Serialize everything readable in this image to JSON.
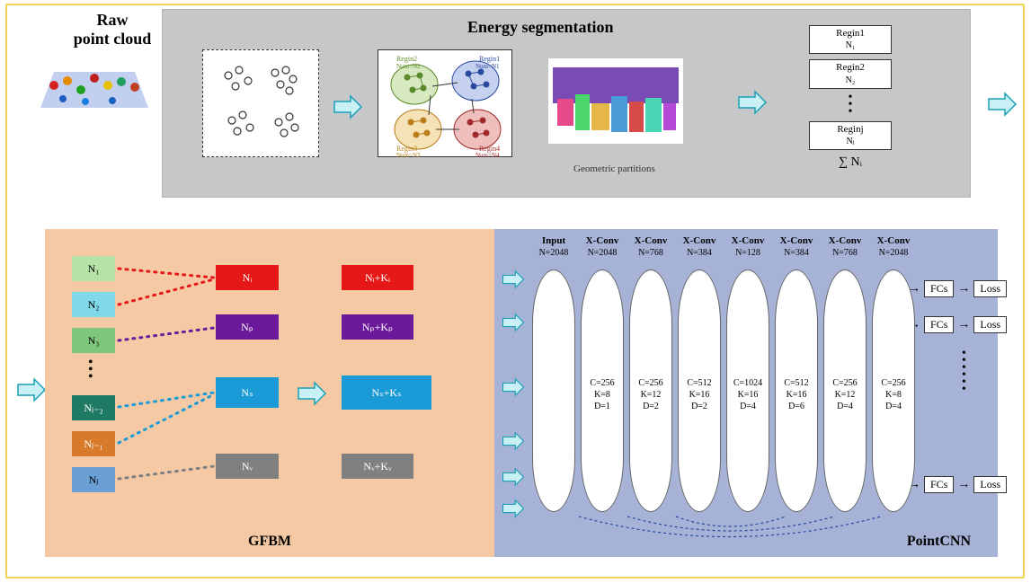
{
  "border_color": "#f2d258",
  "top": {
    "raw_title_l1": "Raw",
    "raw_title_l2": "point cloud",
    "energy_title": "Energy    segmentation",
    "geom_label": "Geometric partitions",
    "clusters": [
      {
        "label": "Regin1",
        "sub": "Num=N1",
        "color": "#2a4aa0"
      },
      {
        "label": "Regin2",
        "sub": "Num=N2",
        "color": "#5b8a2a"
      },
      {
        "label": "Regin3",
        "sub": "Num=N3",
        "color": "#b87d1a"
      },
      {
        "label": "Regin4",
        "sub": "Num=N4",
        "color": "#a02a2a"
      }
    ],
    "regions": [
      {
        "name": "Regin1",
        "sub": "N₁"
      },
      {
        "name": "Regin2",
        "sub": "N₂"
      },
      {
        "name": "Reginj",
        "sub": "Nⱼ"
      }
    ],
    "sum": "∑ Nᵢ"
  },
  "gfbm": {
    "title": "GFBM",
    "left_col": [
      {
        "label": "N₁",
        "bg": "#b7e3a8"
      },
      {
        "label": "N₂",
        "bg": "#7fd9e6"
      },
      {
        "label": "N₃",
        "bg": "#7fc77a"
      },
      {
        "label": "Nⱼ₋₂",
        "bg": "#1f7a63",
        "white": true
      },
      {
        "label": "Nⱼ₋₁",
        "bg": "#d77a2a",
        "white": true
      },
      {
        "label": "Nⱼ",
        "bg": "#6aa0d6"
      }
    ],
    "mid_col": [
      {
        "label": "Nᵢ",
        "bg": "#e61717",
        "white": true
      },
      {
        "label": "Nₚ",
        "bg": "#6a1a9a",
        "white": true
      },
      {
        "label": "Nₛ",
        "bg": "#1a9ad6",
        "white": true
      },
      {
        "label": "Nᵥ",
        "bg": "#808080",
        "white": true
      }
    ],
    "right_col": [
      {
        "label": "Nᵢ+Kᵢ",
        "bg": "#e61717",
        "white": true
      },
      {
        "label": "Nₚ+Kₚ",
        "bg": "#6a1a9a",
        "white": true
      },
      {
        "label": "Nₛ+Kₛ",
        "bg": "#1a9ad6",
        "white": true
      },
      {
        "label": "Nᵥ+Kᵥ",
        "bg": "#808080",
        "white": true
      }
    ],
    "dot_colors": [
      "#e61717",
      "#6a1a9a",
      "#1a9ad6",
      "#808080"
    ]
  },
  "cnn": {
    "title": "PointCNN",
    "arrow_fill": "#c8f0f5",
    "arrow_stroke": "#1aa0b5",
    "columns": [
      {
        "head": "Input",
        "n": "N=2048",
        "c": "",
        "k": "",
        "d": ""
      },
      {
        "head": "X-Conv",
        "n": "N=2048",
        "c": "C=256",
        "k": "K=8",
        "d": "D=1"
      },
      {
        "head": "X-Conv",
        "n": "N=768",
        "c": "C=256",
        "k": "K=12",
        "d": "D=2"
      },
      {
        "head": "X-Conv",
        "n": "N=384",
        "c": "C=512",
        "k": "K=16",
        "d": "D=2"
      },
      {
        "head": "X-Conv",
        "n": "N=128",
        "c": "C=1024",
        "k": "K=16",
        "d": "D=4"
      },
      {
        "head": "X-Conv",
        "n": "N=384",
        "c": "C=512",
        "k": "K=16",
        "d": "D=6"
      },
      {
        "head": "X-Conv",
        "n": "N=768",
        "c": "C=256",
        "k": "K=12",
        "d": "D=4"
      },
      {
        "head": "X-Conv",
        "n": "N=2048",
        "c": "C=256",
        "k": "K=8",
        "d": "D=4"
      }
    ],
    "fcs_label": "FCs",
    "loss_label": "Loss",
    "skip_stroke": "#2a4aa0"
  }
}
